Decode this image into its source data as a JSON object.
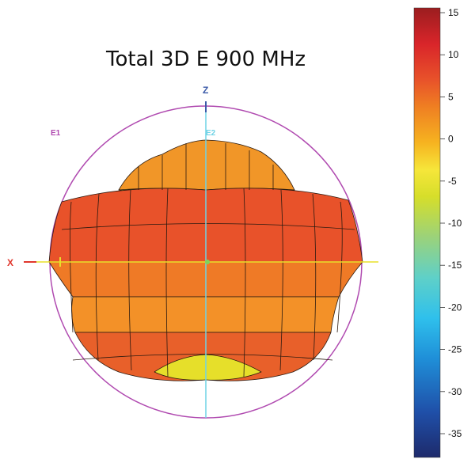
{
  "title": "Total 3D E 900 MHz",
  "axes": {
    "z": {
      "label": "Z",
      "color": "#3b5aa8"
    },
    "x": {
      "label": "X",
      "color": "#e0362c"
    },
    "e1": {
      "label": "E1",
      "color": "#b04ab0"
    },
    "e2": {
      "label": "E2",
      "color": "#6fd3e6"
    }
  },
  "colorbar": {
    "ticks": [
      "15",
      "10",
      "5",
      "0",
      "-5",
      "-10",
      "-15",
      "-20",
      "-25",
      "-30",
      "-35"
    ],
    "min": -40,
    "max": 15,
    "colors": [
      "#1e2a6b",
      "#1f4fa8",
      "#1f8fd8",
      "#2fc0ec",
      "#5fd0c8",
      "#9bd27a",
      "#d6de2a",
      "#f6e63a",
      "#f6b320",
      "#ef7f22",
      "#e8522a",
      "#d9252a",
      "#9b1d1f"
    ]
  },
  "pattern_colors": {
    "main": "#e8522a",
    "mid": "#ef7f22",
    "light": "#f4a62a",
    "yellow": "#e8e02a",
    "ring": "#b04ab0"
  }
}
